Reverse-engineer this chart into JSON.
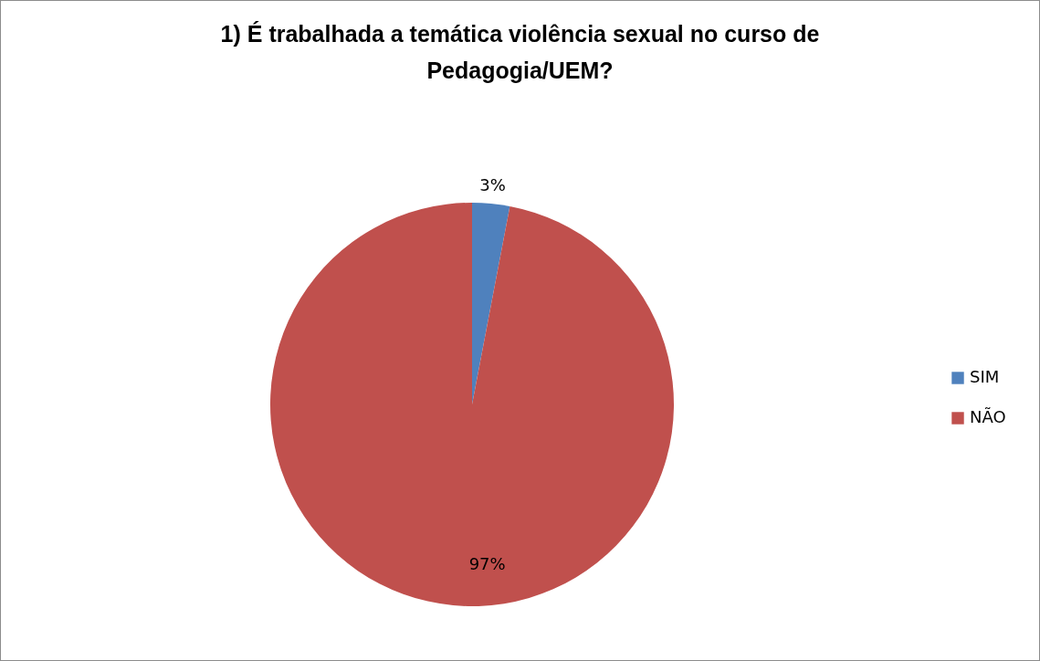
{
  "chart_data": {
    "type": "pie",
    "title": "1) É trabalhada a temática violência sexual no curso de Pedagogia/UEM?",
    "categories": [
      "SIM",
      "NÃO"
    ],
    "values": [
      3,
      97
    ],
    "colors": [
      "#4f81bd",
      "#c0504d"
    ],
    "value_labels": [
      "3%",
      "97%"
    ],
    "legend": "right"
  }
}
